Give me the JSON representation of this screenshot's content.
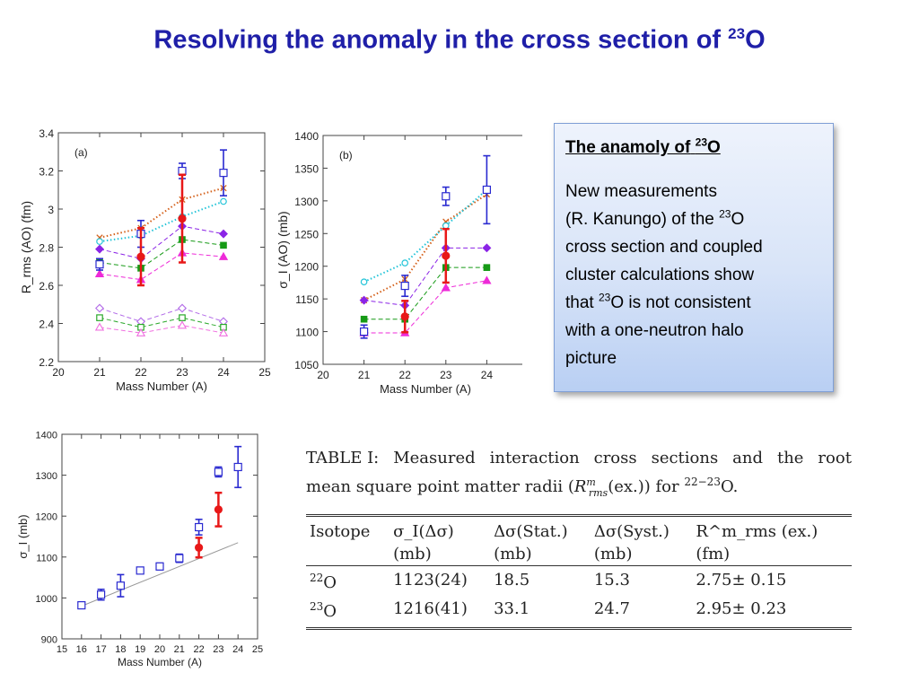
{
  "page": {
    "title": "Resolving the anomaly in the cross section of",
    "title_sup": "23",
    "title_tail": "O"
  },
  "callout": {
    "heading": "The anamoly of",
    "heading_sup": "23",
    "heading_tail": "O",
    "line1": "New measurements",
    "line2_a": "(R. Kanungo) of the",
    "line2_sup": "23",
    "line2_b": "O",
    "line3": "cross section and coupled",
    "line4": "cluster calculations show",
    "line5_a": "that",
    "line5_sup": "23",
    "line5_b": "O is not consistent",
    "line6": "with a one-neutron halo",
    "line7": "picture"
  },
  "table": {
    "caption_w1": "TABLE I:",
    "caption_w2": "Measured",
    "caption_w3": "interaction",
    "caption_w4": "cross",
    "caption_w5": "sections",
    "caption_w6": "and",
    "caption_w7": "the",
    "caption_w8": "root",
    "caption_line2_a": "mean square point matter radii (",
    "caption_R": "R",
    "caption_R_sup": "m",
    "caption_R_sub": "rms",
    "caption_line2_b": "(ex.))  for",
    "caption_iso_sup": "22−23",
    "caption_iso": "O.",
    "headers": [
      [
        "Isotope",
        ""
      ],
      [
        "σ_I(Δσ)",
        "(mb)"
      ],
      [
        "Δσ(Stat.)",
        "(mb)"
      ],
      [
        "Δσ(Syst.)",
        "(mb)"
      ],
      [
        "R^m_rms (ex.)",
        "(fm)"
      ]
    ],
    "rows": [
      {
        "mass": "22",
        "el": "O",
        "sigma": "1123(24)",
        "stat": "18.5",
        "syst": "15.3",
        "radius": "2.75± 0.15"
      },
      {
        "mass": "23",
        "el": "O",
        "sigma": "1216(41)",
        "stat": "33.1",
        "syst": "24.7",
        "radius": "2.95± 0.23"
      }
    ]
  },
  "chart_data": [
    {
      "type": "scatter",
      "panel_label": "(a)",
      "xlabel": "Mass Number (A)",
      "ylabel": "R_rms (AO)  (fm)",
      "xlim": [
        20,
        25
      ],
      "ylim": [
        2.2,
        3.4
      ],
      "xticks": [
        20,
        21,
        22,
        23,
        24,
        25
      ],
      "yticks": [
        2.2,
        2.4,
        2.6,
        2.8,
        3.0,
        3.2,
        3.4
      ],
      "ytick_labels": [
        "2.2",
        "2.4",
        "2.6",
        "2.8",
        "3",
        "3.2",
        "3.4"
      ],
      "series": [
        {
          "color": "#d4601a",
          "marker": "x",
          "line": "dotted",
          "x": [
            21,
            22,
            23,
            24
          ],
          "y": [
            2.85,
            2.9,
            3.05,
            3.11
          ]
        },
        {
          "color": "#22c4d8",
          "marker": "circle-open",
          "line": "dotted",
          "x": [
            21,
            22,
            23,
            24
          ],
          "y": [
            2.83,
            2.86,
            2.96,
            3.04
          ]
        },
        {
          "color": "#8b24e6",
          "marker": "diamond",
          "line": "dashed",
          "x": [
            21,
            22,
            23,
            24
          ],
          "y": [
            2.79,
            2.74,
            2.91,
            2.87
          ]
        },
        {
          "color": "#169a16",
          "marker": "square",
          "line": "dashed",
          "x": [
            21,
            22,
            23,
            24
          ],
          "y": [
            2.72,
            2.69,
            2.84,
            2.81
          ]
        },
        {
          "color": "#ee2ad8",
          "marker": "triangle",
          "line": "dashed",
          "x": [
            21,
            22,
            23,
            24
          ],
          "y": [
            2.66,
            2.63,
            2.77,
            2.75
          ]
        },
        {
          "color": "#b36ce8",
          "marker": "diamond-open",
          "line": "dashed",
          "x": [
            21,
            22,
            23,
            24
          ],
          "y": [
            2.48,
            2.41,
            2.48,
            2.41
          ]
        },
        {
          "color": "#2aa82a",
          "marker": "square-open",
          "line": "dashed",
          "x": [
            21,
            22,
            23,
            24
          ],
          "y": [
            2.43,
            2.38,
            2.43,
            2.38
          ]
        },
        {
          "color": "#f070e0",
          "marker": "triangle-open",
          "line": "dashed",
          "x": [
            21,
            22,
            23,
            24
          ],
          "y": [
            2.38,
            2.35,
            2.39,
            2.35
          ]
        },
        {
          "color": "#2a2ad0",
          "marker": "square-open",
          "errorbars": true,
          "x": [
            21,
            22,
            23,
            24
          ],
          "y": [
            2.71,
            2.87,
            3.2,
            3.19
          ],
          "err": [
            0.03,
            0.07,
            0.04,
            0.12
          ]
        },
        {
          "color": "#e81818",
          "marker": "circle",
          "errorbars": true,
          "x": [
            22,
            23
          ],
          "y": [
            2.75,
            2.95
          ],
          "err": [
            0.15,
            0.23
          ]
        }
      ]
    },
    {
      "type": "scatter",
      "panel_label": "(b)",
      "xlabel": "Mass Number (A)",
      "ylabel": "σ_I (AO)  (mb)",
      "xlim": [
        20,
        25
      ],
      "ylim": [
        1050,
        1400
      ],
      "xticks": [
        20,
        21,
        22,
        23,
        24
      ],
      "yticks": [
        1050,
        1100,
        1150,
        1200,
        1250,
        1300,
        1350,
        1400
      ],
      "series": [
        {
          "color": "#d4601a",
          "marker": "x",
          "line": "dotted",
          "x": [
            21,
            22,
            23,
            24
          ],
          "y": [
            1148,
            1180,
            1268,
            1310
          ]
        },
        {
          "color": "#22c4d8",
          "marker": "circle-open",
          "line": "dotted",
          "x": [
            21,
            22,
            23,
            24
          ],
          "y": [
            1176,
            1205,
            1262,
            1317
          ]
        },
        {
          "color": "#8b24e6",
          "marker": "diamond",
          "line": "dashed",
          "x": [
            21,
            22,
            23,
            24
          ],
          "y": [
            1148,
            1140,
            1228,
            1228
          ]
        },
        {
          "color": "#169a16",
          "marker": "square",
          "line": "dashed",
          "x": [
            21,
            22,
            23,
            24
          ],
          "y": [
            1119,
            1119,
            1198,
            1198
          ]
        },
        {
          "color": "#ee2ad8",
          "marker": "triangle",
          "line": "dashed",
          "x": [
            21,
            22,
            23,
            24
          ],
          "y": [
            1098,
            1098,
            1167,
            1178
          ]
        },
        {
          "color": "#2a2ad0",
          "marker": "square-open",
          "errorbars": true,
          "x": [
            21,
            22,
            23,
            24
          ],
          "y": [
            1100,
            1170,
            1307,
            1317
          ],
          "err": [
            10,
            16,
            14,
            52
          ]
        },
        {
          "color": "#e81818",
          "marker": "circle",
          "errorbars": true,
          "x": [
            22,
            23
          ],
          "y": [
            1123,
            1216
          ],
          "err": [
            24,
            41
          ]
        }
      ]
    },
    {
      "type": "scatter",
      "xlabel": "Mass Number (A)",
      "ylabel": "σ_I (mb)",
      "xlim": [
        15,
        25
      ],
      "ylim": [
        900,
        1400
      ],
      "xticks": [
        15,
        16,
        17,
        18,
        19,
        20,
        21,
        22,
        23,
        24,
        25
      ],
      "yticks": [
        900,
        1000,
        1100,
        1200,
        1300,
        1400
      ],
      "series": [
        {
          "color": "#999999",
          "marker": "none",
          "line": "solid",
          "x": [
            16,
            24
          ],
          "y": [
            980,
            1135
          ]
        },
        {
          "color": "#2a2ad0",
          "marker": "square-open",
          "errorbars": true,
          "x": [
            16,
            17,
            18,
            19,
            20,
            21,
            22,
            23,
            24
          ],
          "y": [
            982,
            1008,
            1030,
            1067,
            1077,
            1097,
            1173,
            1308,
            1320
          ],
          "err": [
            5,
            13,
            27,
            6,
            8,
            10,
            19,
            12,
            50
          ]
        },
        {
          "color": "#e81818",
          "marker": "circle",
          "errorbars": true,
          "x": [
            22,
            23
          ],
          "y": [
            1123,
            1216
          ],
          "err": [
            24,
            41
          ]
        }
      ]
    }
  ]
}
